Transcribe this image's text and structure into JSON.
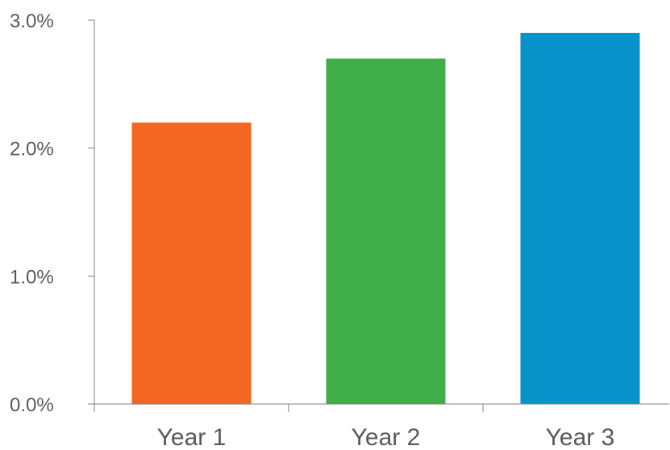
{
  "chart_data": {
    "type": "bar",
    "categories": [
      "Year 1",
      "Year 2",
      "Year 3"
    ],
    "values": [
      2.2,
      2.7,
      2.9
    ],
    "value_unit": "%",
    "bar_colors": [
      "#F26722",
      "#3FAE49",
      "#0792C9"
    ],
    "ylim": [
      0,
      3
    ],
    "y_ticks": [
      0,
      1,
      2,
      3
    ],
    "y_tick_labels": [
      "0.0%",
      "1.0%",
      "2.0%",
      "3.0%"
    ],
    "grid": false,
    "legend": "none",
    "title": "",
    "xlabel": "",
    "ylabel": ""
  }
}
